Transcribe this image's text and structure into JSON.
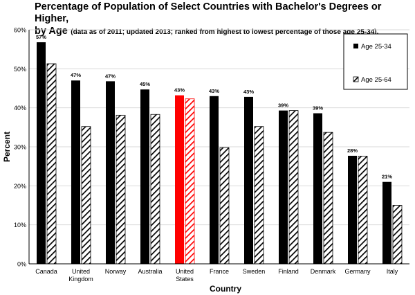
{
  "chart_data": {
    "type": "bar",
    "title_line1": "Percentage of Population of Select Countries with Bachelor's Degrees or Higher,",
    "title_line2_bold": "by Age",
    "title_line2_note": "(data as of 2011; updated 2013; ranked from highest to lowest percentage of those age 25-34).",
    "xlabel": "Country",
    "ylabel": "Percent",
    "ylim": [
      0,
      60
    ],
    "yticks": [
      "0%",
      "10%",
      "20%",
      "30%",
      "40%",
      "50%",
      "60%"
    ],
    "categories": [
      [
        "Canada"
      ],
      [
        "United",
        "Kingdom"
      ],
      [
        "Norway"
      ],
      [
        "Australia"
      ],
      [
        "United",
        "States"
      ],
      [
        "France"
      ],
      [
        "Sweden"
      ],
      [
        "Finland"
      ],
      [
        "Denmark"
      ],
      [
        "Germany"
      ],
      [
        "Italy"
      ]
    ],
    "series": [
      {
        "name": "Age 25-34",
        "values": [
          56.8,
          47,
          46.8,
          44.7,
          43.2,
          43,
          42.8,
          39.3,
          38.6,
          27.7,
          21
        ],
        "labels": [
          "57%",
          "47%",
          "47%",
          "45%",
          "43%",
          "43%",
          "43%",
          "39%",
          "39%",
          "28%",
          "21%"
        ]
      },
      {
        "name": "Age 25-64",
        "values": [
          51.3,
          35.2,
          38.1,
          38.3,
          42.3,
          29.8,
          35.2,
          39.3,
          33.7,
          27.6,
          15
        ]
      }
    ],
    "highlight_category_index": 4,
    "colors": {
      "series1": "#000000",
      "series1_highlight": "#ff0000",
      "hatch": "#000000",
      "hatch_highlight": "#ff0000",
      "grid": "#d9d9d9"
    },
    "legend_placement": "top-right",
    "grid": true
  }
}
